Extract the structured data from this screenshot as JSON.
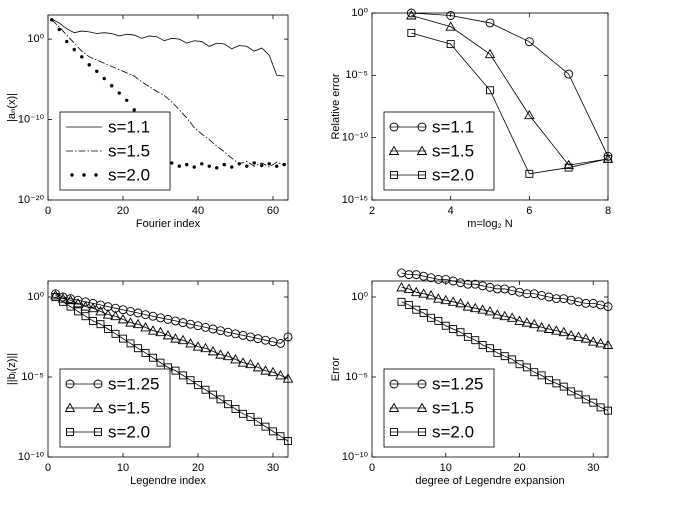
{
  "chart_data": [
    {
      "type": "line",
      "x_label": "Fourier index",
      "y_label": "|aₙ(x)|",
      "yscale": "log",
      "legend": "lower left",
      "xlim": [
        0,
        64
      ],
      "xticks": [
        0,
        20,
        40,
        60
      ],
      "ylim": [
        1e-20,
        1000
      ],
      "yticks": [
        {
          "value": 1e-20,
          "label": "10⁻²⁰"
        },
        {
          "value": 1e-10,
          "label": "10⁻¹⁰"
        },
        {
          "value": 1,
          "label": "10⁰"
        }
      ],
      "x": [
        1,
        3,
        5,
        7,
        9,
        11,
        13,
        15,
        17,
        19,
        21,
        23,
        25,
        27,
        29,
        31,
        33,
        35,
        37,
        39,
        41,
        43,
        45,
        47,
        49,
        51,
        53,
        55,
        57,
        59,
        61,
        63
      ],
      "series": [
        {
          "name": "s=1.1",
          "color": "#000000",
          "style": "solid",
          "marker": "none",
          "values": [
            316,
            100,
            20,
            6.3,
            10,
            7.9,
            5,
            6.3,
            5,
            2.5,
            4,
            3.2,
            1.26,
            2.5,
            2,
            0.63,
            1.26,
            1,
            0.32,
            0.63,
            0.5,
            0.126,
            0.32,
            0.25,
            0.063,
            0.16,
            0.126,
            0.032,
            0.079,
            0.01,
            3.2e-05,
            2.5e-05
          ]
        },
        {
          "name": "s=1.5",
          "color": "#000000",
          "style": "dashdot",
          "marker": "none",
          "values": [
            251,
            32,
            3.2,
            0.32,
            0.032,
            0.0063,
            0.0025,
            0.001,
            0.0004,
            0.00016,
            6.3e-05,
            2.5e-05,
            5e-06,
            1.26e-06,
            3.2e-07,
            1e-07,
            1.6e-08,
            1.6e-09,
            1.6e-10,
            1e-11,
            1.6e-12,
            3.2e-13,
            5e-14,
            1e-14,
            1.6e-15,
            3.2e-16,
            6.3e-16,
            1.6e-16,
            4e-16,
            1.26e-16,
            5e-16,
            2e-16
          ]
        },
        {
          "name": "s=2.0",
          "color": "#000000",
          "style": "none",
          "marker": "dot",
          "values": [
            251,
            16,
            0.5,
            0.05,
            0.0063,
            0.00063,
            0.0001,
            1.26e-05,
            1.6e-06,
            2e-07,
            2.5e-08,
            1.6e-09,
            5e-11,
            1.6e-12,
            6.3e-14,
            2.5e-15,
            4e-16,
            1.6e-16,
            2.5e-16,
            1.26e-16,
            3.2e-16,
            1.6e-16,
            1e-16,
            2.5e-16,
            1.26e-16,
            3.2e-16,
            1.6e-16,
            4e-16,
            2e-16,
            3.2e-16,
            1.6e-16,
            2.5e-16
          ]
        }
      ]
    },
    {
      "type": "line",
      "x_label": "m=log₂ N",
      "y_label": "Relative error",
      "yscale": "log",
      "legend": "lower left",
      "xlim": [
        2,
        8
      ],
      "xticks": [
        2,
        4,
        6,
        8
      ],
      "ylim": [
        1e-15,
        1
      ],
      "yticks": [
        {
          "value": 1e-15,
          "label": "10⁻¹⁵"
        },
        {
          "value": 1e-10,
          "label": "10⁻¹⁰"
        },
        {
          "value": 1e-05,
          "label": "10⁻⁵"
        },
        {
          "value": 1,
          "label": "10⁰"
        }
      ],
      "x": [
        3,
        4,
        5,
        6,
        7,
        8
      ],
      "series": [
        {
          "name": "s=1.1",
          "color": "#000000",
          "style": "solid",
          "marker": "circle",
          "values": [
            1,
            0.63,
            0.16,
            0.005,
            1.26e-05,
            3.2e-12
          ]
        },
        {
          "name": "s=1.5",
          "color": "#000000",
          "style": "solid",
          "marker": "triangle",
          "values": [
            0.63,
            0.08,
            0.0005,
            6.3e-09,
            6.3e-13,
            2e-12
          ]
        },
        {
          "name": "s=2.0",
          "color": "#000000",
          "style": "solid",
          "marker": "square",
          "values": [
            0.025,
            0.0032,
            6.3e-07,
            1.26e-13,
            4e-13,
            2e-12
          ]
        }
      ]
    },
    {
      "type": "line",
      "x_label": "Legendre index",
      "y_label": "||bⱼ(z)||",
      "yscale": "log",
      "legend": "lower left",
      "xlim": [
        0,
        32
      ],
      "xticks": [
        0,
        10,
        20,
        30
      ],
      "ylim": [
        1e-10,
        10
      ],
      "yticks": [
        {
          "value": 1e-10,
          "label": "10⁻¹⁰"
        },
        {
          "value": 1e-05,
          "label": "10⁻⁵"
        },
        {
          "value": 1,
          "label": "10⁰"
        }
      ],
      "x": [
        1,
        2,
        3,
        4,
        5,
        6,
        7,
        8,
        9,
        10,
        11,
        12,
        13,
        14,
        15,
        16,
        17,
        18,
        19,
        20,
        21,
        22,
        23,
        24,
        25,
        26,
        27,
        28,
        29,
        30,
        31,
        32
      ],
      "series": [
        {
          "name": "s=1.25",
          "color": "#000000",
          "style": "solid",
          "marker": "circle",
          "values": [
            1.6,
            1,
            0.79,
            0.63,
            0.5,
            0.4,
            0.32,
            0.25,
            0.2,
            0.16,
            0.126,
            0.1,
            0.079,
            0.063,
            0.05,
            0.04,
            0.032,
            0.025,
            0.02,
            0.016,
            0.0126,
            0.01,
            0.0079,
            0.0063,
            0.005,
            0.004,
            0.0032,
            0.0025,
            0.002,
            0.0016,
            0.00126,
            0.0032
          ]
        },
        {
          "name": "s=1.5",
          "color": "#000000",
          "style": "solid",
          "marker": "triangle",
          "values": [
            1.26,
            0.79,
            0.63,
            0.4,
            0.25,
            0.2,
            0.126,
            0.079,
            0.063,
            0.04,
            0.025,
            0.02,
            0.0126,
            0.0079,
            0.0063,
            0.004,
            0.0025,
            0.002,
            0.00126,
            0.00079,
            0.00063,
            0.0004,
            0.00025,
            0.0002,
            0.000126,
            7.9e-05,
            6.3e-05,
            4e-05,
            2.5e-05,
            2e-05,
            1.26e-05,
            7.9e-06
          ]
        },
        {
          "name": "s=2.0",
          "color": "#000000",
          "style": "solid",
          "marker": "square",
          "values": [
            1,
            0.5,
            0.25,
            0.126,
            0.063,
            0.032,
            0.02,
            0.01,
            0.005,
            0.0025,
            0.00126,
            0.00063,
            0.00032,
            0.00016,
            7.9e-05,
            4e-05,
            2.5e-05,
            1.26e-05,
            6.3e-06,
            3.2e-06,
            1.6e-06,
            7.9e-07,
            4e-07,
            2e-07,
            1e-07,
            5e-08,
            3.2e-08,
            1.6e-08,
            7.9e-09,
            4e-09,
            2e-09,
            1e-09
          ]
        }
      ]
    },
    {
      "type": "line",
      "x_label": "degree of Legendre expansion",
      "y_label": "Error",
      "yscale": "log",
      "legend": "lower left",
      "xlim": [
        0,
        32
      ],
      "xticks": [
        0,
        10,
        20,
        30
      ],
      "ylim": [
        1e-10,
        10
      ],
      "yticks": [
        {
          "value": 1e-10,
          "label": "10⁻¹⁰"
        },
        {
          "value": 1e-05,
          "label": "10⁻⁵"
        },
        {
          "value": 1,
          "label": "10⁰"
        }
      ],
      "x": [
        4,
        5,
        6,
        7,
        8,
        9,
        10,
        11,
        12,
        13,
        14,
        15,
        16,
        17,
        18,
        19,
        20,
        21,
        22,
        23,
        24,
        25,
        26,
        27,
        28,
        29,
        30,
        31,
        32
      ],
      "series": [
        {
          "name": "s=1.25",
          "color": "#000000",
          "style": "solid",
          "marker": "circle",
          "values": [
            32,
            25,
            25,
            20,
            16,
            12.6,
            12.6,
            10,
            7.9,
            6.3,
            6.3,
            5,
            4,
            3.2,
            3.2,
            2.5,
            2,
            1.6,
            1.6,
            1.26,
            1,
            0.79,
            0.79,
            0.63,
            0.5,
            0.4,
            0.4,
            0.32,
            0.25
          ]
        },
        {
          "name": "s=1.5",
          "color": "#000000",
          "style": "solid",
          "marker": "triangle",
          "values": [
            4,
            3.2,
            2,
            1.6,
            1.26,
            0.79,
            0.63,
            0.5,
            0.4,
            0.25,
            0.2,
            0.16,
            0.126,
            0.079,
            0.063,
            0.05,
            0.032,
            0.025,
            0.02,
            0.0126,
            0.01,
            0.0079,
            0.0063,
            0.004,
            0.0032,
            0.0025,
            0.0016,
            0.00126,
            0.001
          ]
        },
        {
          "name": "s=2.0",
          "color": "#000000",
          "style": "solid",
          "marker": "square",
          "values": [
            0.5,
            0.32,
            0.16,
            0.1,
            0.05,
            0.032,
            0.016,
            0.01,
            0.0063,
            0.0032,
            0.002,
            0.001,
            0.00063,
            0.00032,
            0.0002,
            0.000126,
            6.3e-05,
            4e-05,
            2e-05,
            1.26e-05,
            6.3e-06,
            4e-06,
            2.5e-06,
            1.26e-06,
            7.9e-07,
            4e-07,
            2.5e-07,
            1.26e-07,
            7.9e-08
          ]
        }
      ]
    }
  ]
}
